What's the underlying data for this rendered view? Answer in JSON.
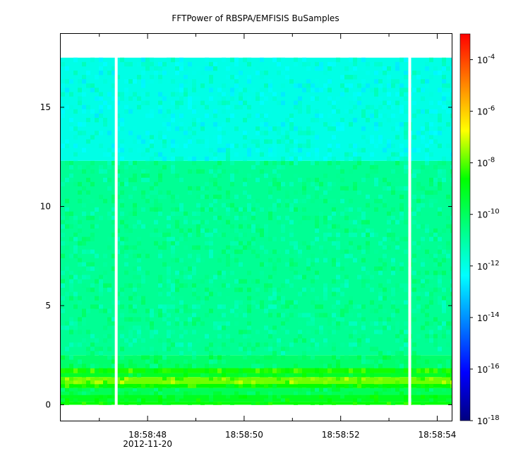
{
  "chart_data": {
    "type": "heatmap",
    "title": "FFTPower of RBSPA/EMFISIS  BuSamples",
    "xlabel": "",
    "ylabel": "",
    "x_ticks": [
      {
        "label": "18:58:48",
        "sublabel": "2012-11-20"
      },
      {
        "label": "18:58:50",
        "sublabel": ""
      },
      {
        "label": "18:58:52",
        "sublabel": ""
      },
      {
        "label": "18:58:54",
        "sublabel": ""
      }
    ],
    "x_range_seconds": [
      46.2,
      54.3
    ],
    "x_major_seconds": [
      48,
      50,
      52,
      54
    ],
    "x_minor_seconds": [
      47,
      49,
      51,
      53
    ],
    "ylim": [
      -0.8,
      18.7
    ],
    "y_ticks": [
      0,
      5,
      10,
      15
    ],
    "data_extent": {
      "y": [
        0,
        17.5
      ],
      "x_seconds": [
        46.2,
        54.3
      ]
    },
    "gaps_seconds": [
      47.35,
      53.43
    ],
    "colorbar": {
      "scale": "log",
      "range": [
        1e-18,
        0.001
      ],
      "ticks": [
        {
          "base": "10",
          "exp": "-4",
          "value": -4
        },
        {
          "base": "10",
          "exp": "-6",
          "value": -6
        },
        {
          "base": "10",
          "exp": "-8",
          "value": -8
        },
        {
          "base": "10",
          "exp": "-10",
          "value": -10
        },
        {
          "base": "10",
          "exp": "-12",
          "value": -12
        },
        {
          "base": "10",
          "exp": "-14",
          "value": -14
        },
        {
          "base": "10",
          "exp": "-16",
          "value": -16
        },
        {
          "base": "10",
          "exp": "-18",
          "value": -18
        }
      ],
      "colormap": [
        "#000080",
        "#0000ff",
        "#0080ff",
        "#00ffff",
        "#00ff80",
        "#00ff00",
        "#ffff00",
        "#ff8000",
        "#ff0000"
      ]
    },
    "bands": [
      {
        "y": [
          0.0,
          0.15
        ],
        "log_power": -8.7
      },
      {
        "y": [
          0.15,
          0.5
        ],
        "log_power": -9.1
      },
      {
        "y": [
          0.5,
          0.85
        ],
        "log_power": -9.9
      },
      {
        "y": [
          0.85,
          1.05
        ],
        "log_power": -8.6
      },
      {
        "y": [
          1.05,
          1.4
        ],
        "log_power": -7.8
      },
      {
        "y": [
          1.4,
          1.6
        ],
        "log_power": -9.2
      },
      {
        "y": [
          1.6,
          1.85
        ],
        "log_power": -8.5
      },
      {
        "y": [
          1.85,
          2.5
        ],
        "log_power": -10.2
      },
      {
        "y": [
          2.5,
          12.3
        ],
        "log_power": -10.8
      },
      {
        "y": [
          12.3,
          17.5
        ],
        "log_power": -12.0
      }
    ]
  }
}
